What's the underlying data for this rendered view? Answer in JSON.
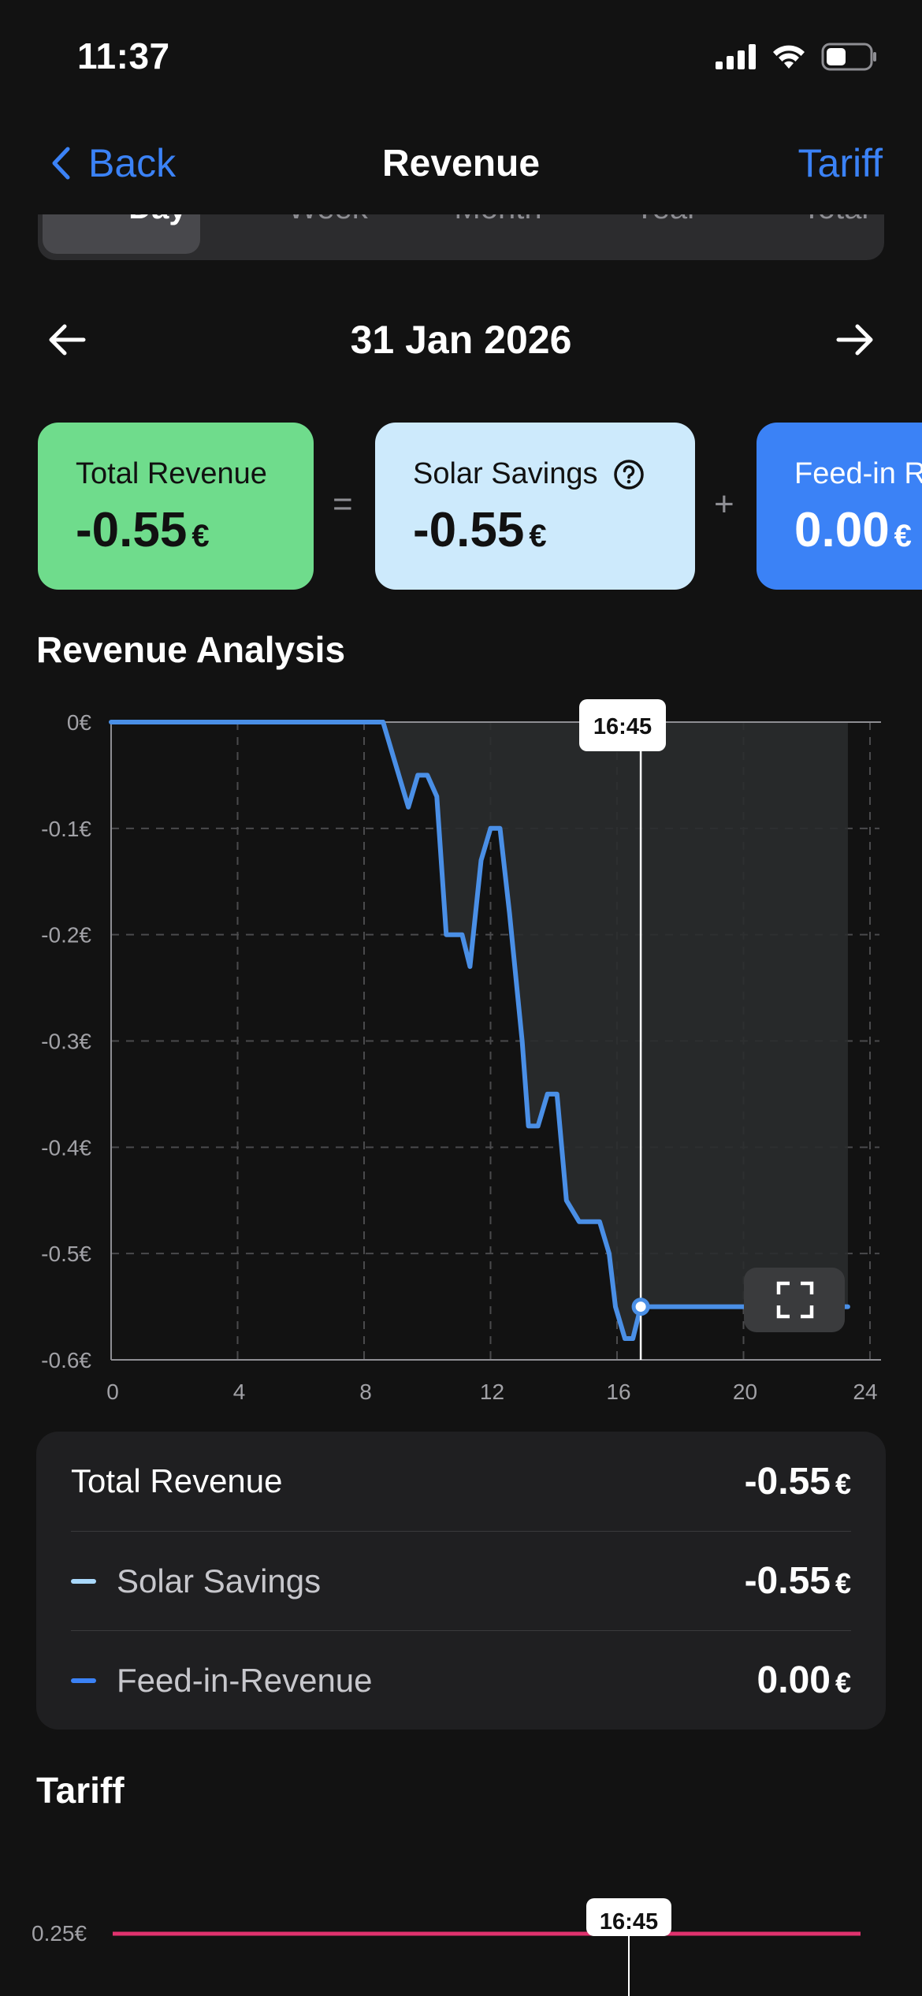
{
  "status_bar": {
    "time": "11:37"
  },
  "nav": {
    "back_label": "Back",
    "title": "Revenue",
    "tariff_label": "Tariff"
  },
  "segments": [
    "Day",
    "Week",
    "Month",
    "Year",
    "Total"
  ],
  "selected_segment": "Day",
  "date_nav": {
    "date": "31 Jan 2026"
  },
  "cards": {
    "total_revenue": {
      "label": "Total Revenue",
      "value": "-0.55",
      "unit": "€",
      "color": "#6fdc8c"
    },
    "solar_savings": {
      "label": "Solar Savings",
      "value": "-0.55",
      "unit": "€",
      "color": "#cdeafc"
    },
    "feed_in": {
      "label": "Feed-in R",
      "value": "0.00",
      "unit": "€",
      "color": "#3b82f6"
    },
    "op_equals": "=",
    "op_plus": "+"
  },
  "revenue_analysis": {
    "title": "Revenue Analysis",
    "tooltip_time": "16:45"
  },
  "chart_data": {
    "type": "area",
    "xlim": [
      0,
      24
    ],
    "ylim": [
      -0.6,
      0
    ],
    "x_ticks": [
      "0",
      "4",
      "8",
      "12",
      "16",
      "20",
      "24"
    ],
    "y_ticks": [
      "0€",
      "-0.1€",
      "-0.2€",
      "-0.3€",
      "-0.4€",
      "-0.5€",
      "-0.6€"
    ],
    "grid": true,
    "cursor_x": 16.75,
    "line_color": "#4a8fe6",
    "series": [
      {
        "x": [
          0,
          8.6,
          9.0,
          9.4,
          9.7,
          10.0,
          10.3,
          10.6,
          10.9,
          11.1,
          11.35,
          11.7,
          12.0,
          12.3,
          12.6,
          13.0,
          13.2,
          13.5,
          13.8,
          14.1,
          14.4,
          14.8,
          15.1,
          15.45,
          15.75,
          15.95,
          16.25,
          16.5,
          16.75,
          19.0,
          23.3
        ],
        "y": [
          0,
          0,
          -0.04,
          -0.08,
          -0.05,
          -0.05,
          -0.07,
          -0.2,
          -0.2,
          -0.2,
          -0.23,
          -0.13,
          -0.1,
          -0.1,
          -0.18,
          -0.3,
          -0.38,
          -0.38,
          -0.35,
          -0.35,
          -0.45,
          -0.47,
          -0.47,
          -0.47,
          -0.5,
          -0.55,
          -0.58,
          -0.58,
          -0.55,
          -0.55,
          -0.55
        ]
      }
    ]
  },
  "summary": {
    "rows": [
      {
        "label": "Total Revenue",
        "value": "-0.55",
        "unit": "€"
      },
      {
        "label": "Solar Savings",
        "value": "-0.55",
        "unit": "€",
        "dash_color": "#a9d8fb"
      },
      {
        "label": "Feed-in-Revenue",
        "value": "0.00",
        "unit": "€",
        "dash_color": "#3b82f6"
      }
    ]
  },
  "tariff_section": {
    "title": "Tariff",
    "y_tick": "0.25€",
    "tooltip_time": "16:45",
    "line_color": "#e0326e"
  }
}
